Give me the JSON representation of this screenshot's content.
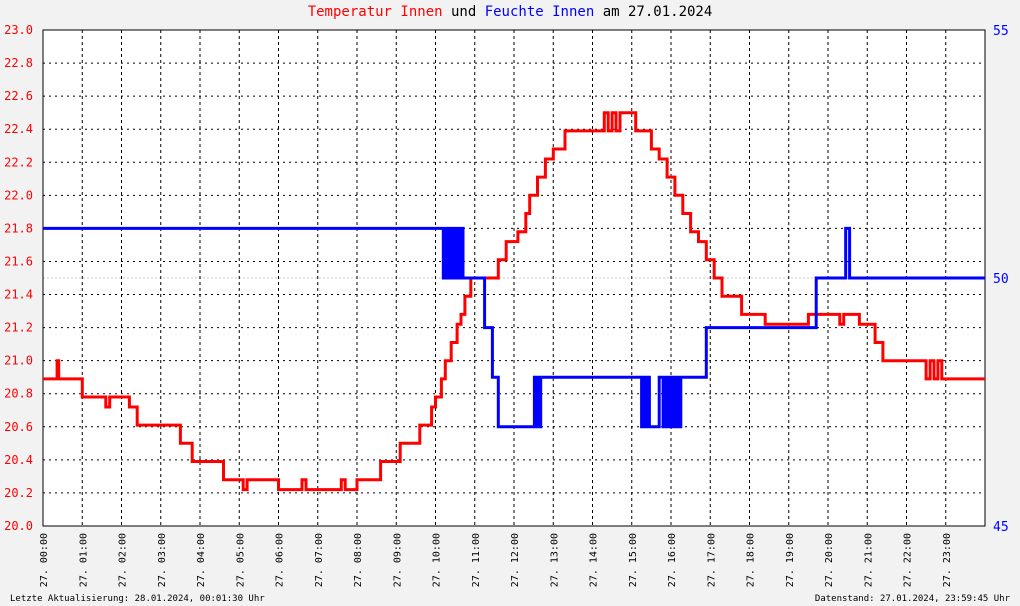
{
  "title": {
    "part1": "Temperatur Innen",
    "part2": " und ",
    "part3": "Feuchte Innen",
    "part4": " am 27.01.2024"
  },
  "footer": {
    "left": "Letzte Aktualisierung: 28.01.2024, 00:01:30 Uhr",
    "right": "Datenstand: 27.01.2024, 23:59:45 Uhr"
  },
  "colors": {
    "temperature": "#ff0000",
    "humidity": "#0000ff",
    "grid": "#000000",
    "background": "#f2f2f2"
  },
  "chart_data": {
    "type": "line",
    "grid": true,
    "x_ticks": [
      "27. 00:00",
      "27. 01:00",
      "27. 02:00",
      "27. 03:00",
      "27. 04:00",
      "27. 05:00",
      "27. 06:00",
      "27. 07:00",
      "27. 08:00",
      "27. 09:00",
      "27. 10:00",
      "27. 11:00",
      "27. 12:00",
      "27. 13:00",
      "27. 14:00",
      "27. 15:00",
      "27. 16:00",
      "27. 17:00",
      "27. 18:00",
      "27. 19:00",
      "27. 20:00",
      "27. 21:00",
      "27. 22:00",
      "27. 23:00"
    ],
    "y_left": {
      "range": [
        20.0,
        23.0
      ],
      "ticks": [
        "20.0",
        "20.2",
        "20.4",
        "20.6",
        "20.8",
        "21.0",
        "21.2",
        "21.4",
        "21.6",
        "21.8",
        "22.0",
        "22.2",
        "22.4",
        "22.6",
        "22.8",
        "23.0"
      ]
    },
    "y_right": {
      "range": [
        45,
        55
      ],
      "ticks": [
        "45",
        "50",
        "55"
      ]
    },
    "series": [
      {
        "axis": "left",
        "x": [
          0,
          0.35,
          0.36,
          0.4,
          1.0,
          1.5,
          1.6,
          1.7,
          2.2,
          2.3,
          2.4,
          3.0,
          3.5,
          3.6,
          3.8,
          4.5,
          4.6,
          5.0,
          5.1,
          5.2,
          6.0,
          6.5,
          6.6,
          6.7,
          7.0,
          7.5,
          7.6,
          7.7,
          7.9,
          8.0,
          8.4,
          8.6,
          8.9,
          9.1,
          9.4,
          9.6,
          9.9,
          10.0,
          10.15,
          10.25,
          10.4,
          10.55,
          10.65,
          10.75,
          10.9,
          11.0,
          11.3,
          11.6,
          11.8,
          12.1,
          12.3,
          12.4,
          12.6,
          12.8,
          13.0,
          13.3,
          13.6,
          13.8,
          14.2,
          14.3,
          14.4,
          14.5,
          14.6,
          14.7,
          14.8,
          14.9,
          15.0,
          15.1,
          15.5,
          15.7,
          15.9,
          16.1,
          16.3,
          16.5,
          16.7,
          16.9,
          17.1,
          17.3,
          17.5,
          17.8,
          18.2,
          18.4,
          18.6,
          18.8,
          19.5,
          20.0,
          20.2,
          20.3,
          20.4,
          20.8,
          21.0,
          21.2,
          21.4,
          21.6,
          21.8,
          22.0,
          22.5,
          22.6,
          22.7,
          22.8,
          22.9,
          23.0,
          24.0
        ],
        "values": [
          20.89,
          20.89,
          21.0,
          20.89,
          20.78,
          20.78,
          20.72,
          20.78,
          20.72,
          20.72,
          20.61,
          20.61,
          20.5,
          20.5,
          20.39,
          20.39,
          20.28,
          20.28,
          20.22,
          20.28,
          20.22,
          20.22,
          20.28,
          20.22,
          20.22,
          20.22,
          20.28,
          20.22,
          20.22,
          20.28,
          20.28,
          20.39,
          20.39,
          20.5,
          20.5,
          20.61,
          20.72,
          20.78,
          20.89,
          21.0,
          21.11,
          21.22,
          21.28,
          21.39,
          21.5,
          21.5,
          21.5,
          21.61,
          21.72,
          21.78,
          21.89,
          22.0,
          22.11,
          22.22,
          22.28,
          22.39,
          22.39,
          22.39,
          22.39,
          22.5,
          22.39,
          22.5,
          22.39,
          22.5,
          22.5,
          22.5,
          22.5,
          22.39,
          22.28,
          22.22,
          22.11,
          22.0,
          21.89,
          21.78,
          21.72,
          21.61,
          21.5,
          21.39,
          21.39,
          21.28,
          21.28,
          21.22,
          21.22,
          21.22,
          21.28,
          21.28,
          21.28,
          21.22,
          21.28,
          21.22,
          21.22,
          21.11,
          21.0,
          21.0,
          21.0,
          21.0,
          20.89,
          21.0,
          20.89,
          21.0,
          20.89,
          20.89,
          20.89
        ]
      },
      {
        "axis": "right",
        "x": [
          0,
          10.15,
          10.2,
          10.25,
          10.3,
          10.35,
          10.4,
          10.45,
          10.5,
          10.55,
          10.6,
          10.65,
          10.7,
          11.0,
          11.25,
          11.45,
          11.6,
          12.5,
          12.52,
          12.55,
          12.58,
          12.6,
          12.62,
          12.65,
          12.68,
          12.7,
          15.2,
          15.25,
          15.3,
          15.35,
          15.4,
          15.45,
          15.5,
          15.7,
          15.8,
          15.85,
          15.9,
          15.95,
          16.0,
          16.05,
          16.1,
          16.15,
          16.2,
          16.25,
          16.3,
          16.8,
          16.9,
          17.0,
          19.5,
          19.7,
          20.4,
          20.45,
          20.5,
          20.55,
          20.6,
          20.7,
          24.0
        ],
        "values": [
          51.0,
          51.0,
          50.0,
          51.0,
          50.0,
          51.0,
          50.0,
          51.0,
          50.0,
          51.0,
          50.0,
          51.0,
          50.0,
          50.0,
          49.0,
          48.0,
          47.0,
          47.0,
          48.0,
          47.0,
          48.0,
          47.0,
          48.0,
          47.0,
          48.0,
          48.0,
          48.0,
          47.0,
          48.0,
          47.0,
          48.0,
          47.0,
          47.0,
          48.0,
          47.0,
          48.0,
          47.0,
          48.0,
          47.0,
          48.0,
          47.0,
          48.0,
          47.0,
          48.0,
          48.0,
          48.0,
          49.0,
          49.0,
          49.0,
          50.0,
          50.0,
          51.0,
          51.0,
          50.0,
          50.0,
          50.0,
          50.0
        ]
      }
    ]
  }
}
